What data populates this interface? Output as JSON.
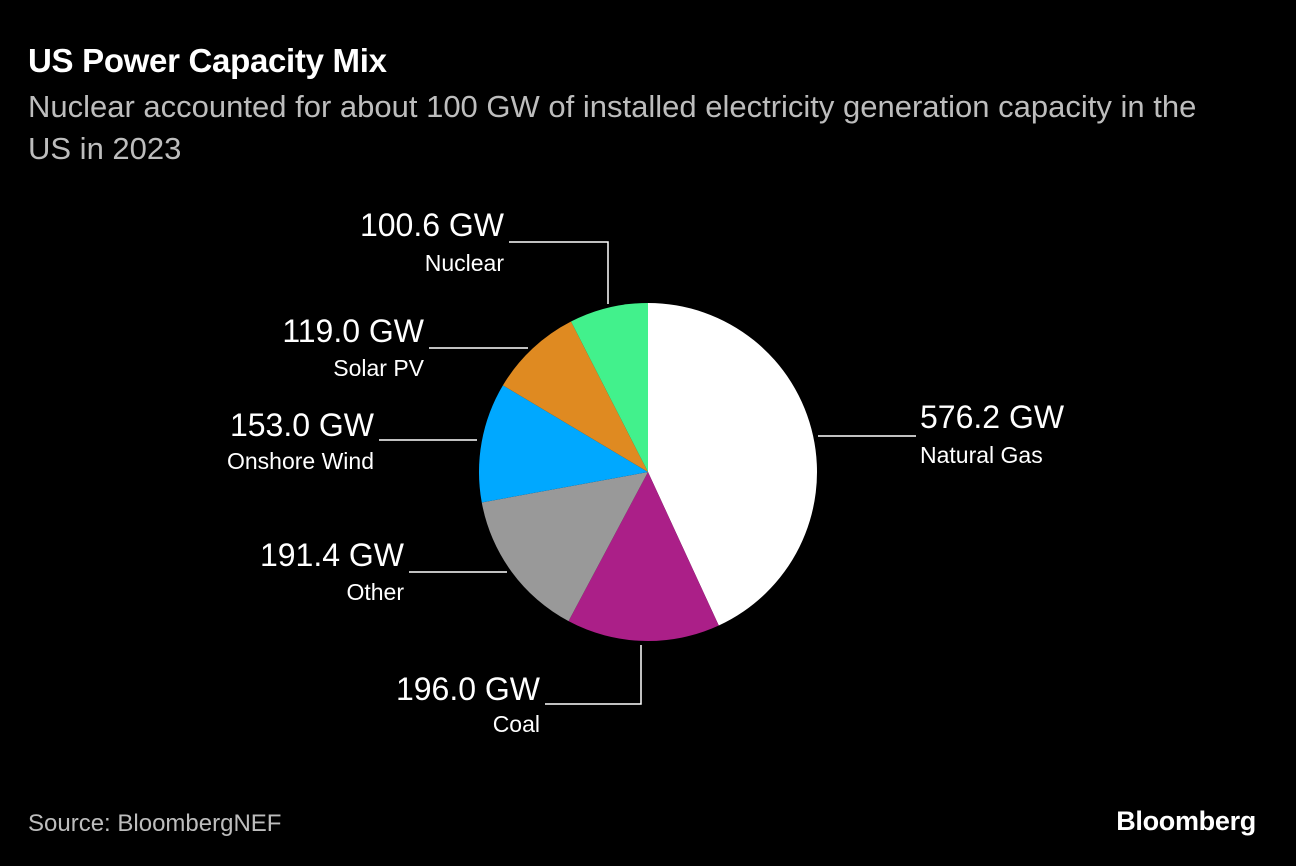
{
  "header": {
    "title": "US Power Capacity Mix",
    "subtitle": "Nuclear accounted for about 100 GW of installed electricity generation capacity in the US in 2023"
  },
  "footer": {
    "source": "Source: BloombergNEF",
    "brand": "Bloomberg"
  },
  "chart_data": {
    "type": "pie",
    "unit": "GW",
    "slices": [
      {
        "label": "Natural Gas",
        "value": 576.2,
        "value_label": "576.2 GW",
        "color": "#ffffff"
      },
      {
        "label": "Coal",
        "value": 196.0,
        "value_label": "196.0 GW",
        "color": "#ab1f88"
      },
      {
        "label": "Other",
        "value": 191.4,
        "value_label": "191.4 GW",
        "color": "#999999"
      },
      {
        "label": "Onshore Wind",
        "value": 153.0,
        "value_label": "153.0 GW",
        "color": "#00a8ff"
      },
      {
        "label": "Solar PV",
        "value": 119.0,
        "value_label": "119.0 GW",
        "color": "#df8a21"
      },
      {
        "label": "Nuclear",
        "value": 100.6,
        "value_label": "100.6 GW",
        "color": "#42f18c"
      }
    ],
    "start_angle": "12 o'clock",
    "direction": "clockwise",
    "legend": "none"
  }
}
